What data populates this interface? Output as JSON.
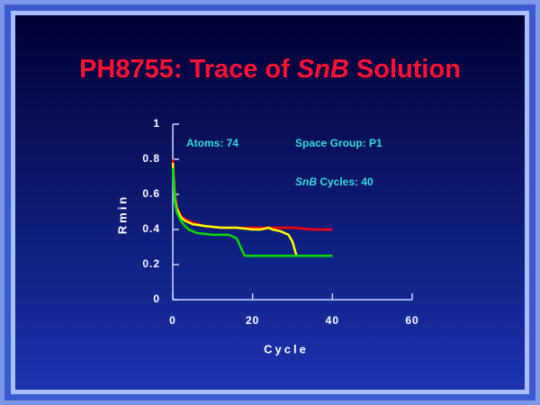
{
  "chart_data": {
    "type": "line",
    "title": [
      {
        "text": "PH8755: Trace of "
      },
      {
        "text": "SnB",
        "italic": true
      },
      {
        "text": " Solution"
      }
    ],
    "xlabel": "Cycle",
    "ylabel": "Rmin",
    "annotations": [
      [
        {
          "text": "Atoms: 74"
        }
      ],
      [
        {
          "text": "Space Group: P1"
        }
      ],
      [
        {
          "text": "SnB",
          "italic": true
        },
        {
          "text": " Cycles: 40"
        }
      ]
    ],
    "xlim": [
      0,
      60
    ],
    "xticks": [
      0,
      20,
      40,
      60
    ],
    "ylim": [
      0,
      1
    ],
    "yticks": [
      0,
      0.2,
      0.4,
      0.6,
      0.8,
      1
    ],
    "series": [
      {
        "color": "#ff0000",
        "x": [
          0,
          0.5,
          1,
          2,
          3,
          5,
          8,
          12,
          16,
          20,
          25,
          30,
          35,
          38,
          40
        ],
        "values": [
          0.8,
          0.6,
          0.53,
          0.48,
          0.46,
          0.44,
          0.42,
          0.41,
          0.41,
          0.41,
          0.41,
          0.41,
          0.4,
          0.4,
          0.4
        ]
      },
      {
        "color": "#ffff00",
        "x": [
          0,
          0.5,
          1,
          2,
          3,
          5,
          8,
          12,
          16,
          20,
          22,
          24,
          25,
          27,
          29,
          30,
          31,
          35,
          40
        ],
        "values": [
          0.78,
          0.58,
          0.52,
          0.47,
          0.45,
          0.43,
          0.42,
          0.41,
          0.41,
          0.4,
          0.4,
          0.41,
          0.4,
          0.39,
          0.37,
          0.33,
          0.25,
          0.25,
          0.25
        ]
      },
      {
        "color": "#00dd00",
        "x": [
          0,
          0.5,
          1,
          2,
          3,
          4,
          6,
          10,
          14,
          16,
          17,
          18,
          25,
          30,
          35,
          40
        ],
        "values": [
          0.75,
          0.56,
          0.5,
          0.45,
          0.42,
          0.4,
          0.38,
          0.37,
          0.37,
          0.35,
          0.3,
          0.25,
          0.25,
          0.25,
          0.25,
          0.25
        ]
      }
    ]
  }
}
